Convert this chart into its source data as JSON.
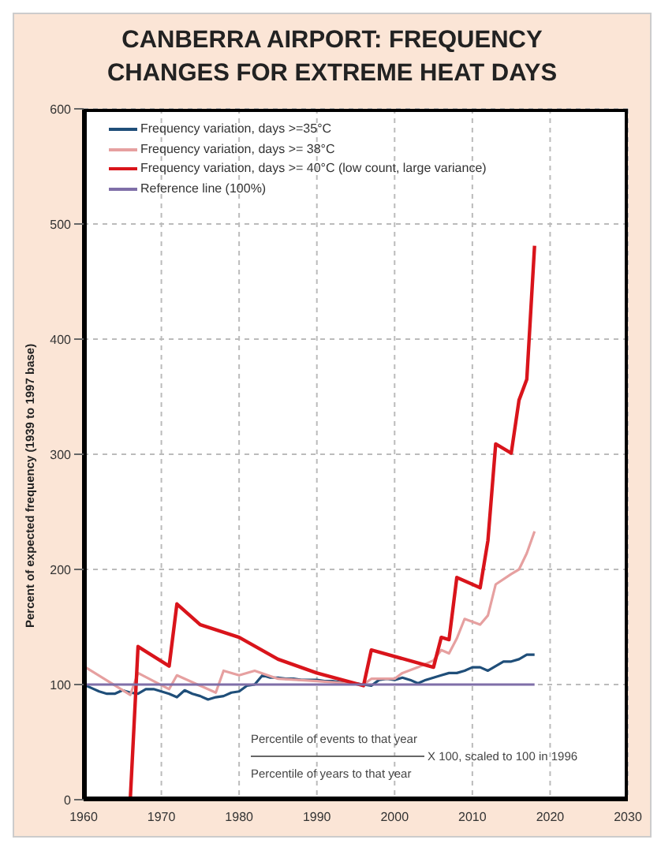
{
  "chart_data": {
    "type": "line",
    "title": "CANBERRA AIRPORT: FREQUENCY CHANGES FOR EXTREME HEAT DAYS",
    "ylabel": "Percent of expected frequency (1939 to 1997 base)",
    "xlim": [
      1960,
      2030
    ],
    "xticks": [
      1960,
      1970,
      1980,
      1990,
      2000,
      2010,
      2020,
      2030
    ],
    "ylim": [
      0,
      600
    ],
    "yticks": [
      0,
      100,
      200,
      300,
      400,
      500,
      600
    ],
    "grid": true,
    "legend": "top left",
    "marker": "none",
    "line_style": "solid",
    "annotations": [
      "Percentile of events  to that year",
      "X 100, scaled to 100 in 1996",
      "Percentile of years to that year"
    ],
    "series": [
      {
        "name": "Frequency variation, days >=35°C",
        "color": "#1f4e79",
        "x": [
          1960,
          1961,
          1962,
          1963,
          1964,
          1965,
          1966,
          1967,
          1968,
          1969,
          1970,
          1971,
          1972,
          1973,
          1974,
          1975,
          1976,
          1977,
          1978,
          1979,
          1980,
          1981,
          1982,
          1983,
          1984,
          1985,
          1986,
          1987,
          1988,
          1989,
          1990,
          1991,
          1992,
          1993,
          1994,
          1995,
          1996,
          1997,
          1998,
          1999,
          2000,
          2001,
          2002,
          2003,
          2004,
          2005,
          2006,
          2007,
          2008,
          2009,
          2010,
          2011,
          2012,
          2013,
          2014,
          2015,
          2016,
          2017,
          2018
        ],
        "values": [
          100,
          97,
          94,
          92,
          92,
          95,
          93,
          92,
          96,
          96,
          94,
          92,
          89,
          95,
          92,
          90,
          87,
          89,
          90,
          93,
          94,
          99,
          100,
          108,
          106,
          106,
          105,
          105,
          104,
          104,
          104,
          103,
          103,
          102,
          101,
          101,
          100,
          99,
          104,
          105,
          104,
          106,
          104,
          101,
          104,
          106,
          108,
          110,
          110,
          112,
          115,
          115,
          112,
          116,
          120,
          120,
          122,
          126,
          126
        ]
      },
      {
        "name": "Frequency variation, days >= 38°C",
        "color": "#e6a0a0",
        "x": [
          1960,
          1966,
          1967,
          1971,
          1972,
          1977,
          1978,
          1980,
          1982,
          1985,
          1990,
          1996,
          1997,
          2000,
          2001,
          2003,
          2005,
          2006,
          2007,
          2008,
          2009,
          2011,
          2012,
          2013,
          2015,
          2016,
          2017,
          2018
        ],
        "values": [
          116,
          91,
          110,
          96,
          108,
          93,
          112,
          108,
          112,
          105,
          103,
          100,
          105,
          105,
          110,
          115,
          121,
          130,
          127,
          140,
          157,
          152,
          160,
          187,
          196,
          200,
          214,
          233
        ]
      },
      {
        "name": "Frequency variation, days >= 40°C (low count, large variance)",
        "color": "#d9141b",
        "x": [
          1960,
          1966,
          1967,
          1971,
          1972,
          1975,
          1980,
          1985,
          1990,
          1996,
          1997,
          2005,
          2006,
          2007,
          2008,
          2011,
          2012,
          2013,
          2015,
          2016,
          2017,
          2018
        ],
        "values": [
          0,
          0,
          133,
          116,
          170,
          152,
          141,
          122,
          110,
          99,
          130,
          115,
          141,
          139,
          193,
          184,
          225,
          309,
          301,
          347,
          365,
          481
        ]
      },
      {
        "name": "Reference line (100%)",
        "color": "#7f6fa8",
        "x": [
          1960,
          2018
        ],
        "values": [
          100,
          100
        ]
      }
    ]
  }
}
